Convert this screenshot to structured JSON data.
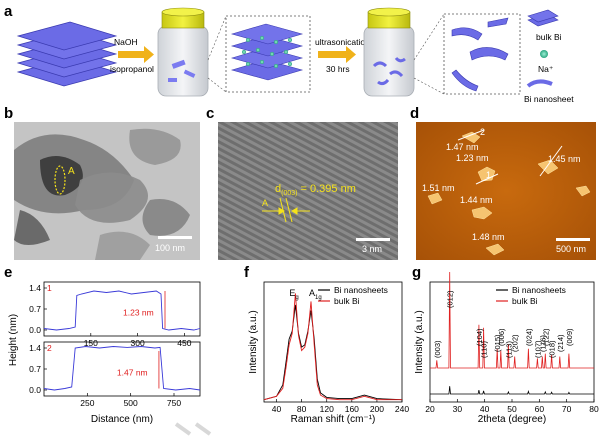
{
  "panels": {
    "a": {
      "label": "a",
      "step1": "NaOH",
      "step2": "isopropanol",
      "step3": "ultrasonication",
      "step4": "30 hrs",
      "legend": [
        "bulk  Bi",
        "Na⁺",
        "Bi nanosheet"
      ],
      "colors": {
        "sheet": "#6b6be6",
        "sheet_edge": "#3a3ab0",
        "arrow": "#f0b21a",
        "cap": "#e6e61a",
        "na": "#3ec7a0"
      }
    },
    "b": {
      "label": "b",
      "marker": "A",
      "scale": "100 nm"
    },
    "c": {
      "label": "c",
      "dspacing": "d",
      "dsub": "(003)",
      "dvalue": " = 0.395 nm",
      "marker": "A",
      "scale": "3 nm"
    },
    "d": {
      "label": "d",
      "scale": "500 nm",
      "heights": [
        "1.47 nm",
        "1.23 nm",
        "1.45 nm",
        "1.51 nm",
        "1.44 nm",
        "1.48 nm"
      ],
      "markers": [
        "1",
        "2"
      ]
    }
  },
  "chart_data": [
    {
      "panel": "e",
      "type": "line",
      "xlabel": "Distance (nm)",
      "ylabel": "Height (nm)",
      "subplots": [
        {
          "id": "1",
          "annotation": "1.23 nm",
          "xlim": [
            0,
            500
          ],
          "ylim": [
            -0.2,
            1.6
          ],
          "xticks": [
            150,
            300,
            450
          ],
          "yticks": [
            0.0,
            0.7,
            1.4
          ],
          "x": [
            0,
            40,
            80,
            100,
            105,
            120,
            160,
            200,
            240,
            280,
            320,
            360,
            375,
            380,
            400,
            440,
            480,
            500
          ],
          "y": [
            0.05,
            0.0,
            0.05,
            0.1,
            1.15,
            1.2,
            1.3,
            1.25,
            1.3,
            1.2,
            1.25,
            1.3,
            1.2,
            0.05,
            0.0,
            0.05,
            0.0,
            0.05
          ]
        },
        {
          "id": "2",
          "annotation": "1.47 nm",
          "xlim": [
            0,
            900
          ],
          "ylim": [
            -0.2,
            1.6
          ],
          "xticks": [
            250,
            500,
            750
          ],
          "yticks": [
            0.0,
            0.7,
            1.4
          ],
          "x": [
            0,
            60,
            120,
            160,
            180,
            240,
            320,
            400,
            480,
            560,
            640,
            670,
            690,
            760,
            840,
            900
          ],
          "y": [
            0.05,
            0.0,
            0.05,
            0.1,
            1.4,
            1.45,
            1.4,
            1.45,
            1.42,
            1.45,
            1.4,
            1.42,
            0.05,
            0.0,
            0.05,
            0.0
          ]
        }
      ]
    },
    {
      "panel": "f",
      "type": "line",
      "xlabel": "Raman shift (cm⁻¹)",
      "ylabel": "Intensity (a.u.)",
      "xlim": [
        20,
        240
      ],
      "xticks": [
        40,
        80,
        120,
        160,
        200,
        240
      ],
      "peaks": [
        {
          "label": "E",
          "sub": "g",
          "x": 70
        },
        {
          "label": "A",
          "sub": "1g",
          "x": 95
        }
      ],
      "series": [
        {
          "name": "Bi nanosheets",
          "color": "#000000",
          "x": [
            20,
            40,
            50,
            55,
            60,
            65,
            70,
            75,
            80,
            85,
            90,
            95,
            100,
            105,
            110,
            120,
            140,
            160,
            180,
            200,
            240
          ],
          "y": [
            0.02,
            0.05,
            0.15,
            0.35,
            0.55,
            0.62,
            0.85,
            0.6,
            0.48,
            0.5,
            0.62,
            0.8,
            0.55,
            0.2,
            0.08,
            0.04,
            0.03,
            0.03,
            0.06,
            0.03,
            0.02
          ]
        },
        {
          "name": "bulk  Bi",
          "color": "#e02020",
          "x": [
            20,
            40,
            50,
            55,
            60,
            65,
            70,
            75,
            80,
            85,
            90,
            95,
            100,
            105,
            110,
            120,
            140,
            160,
            180,
            200,
            240
          ],
          "y": [
            0.02,
            0.05,
            0.12,
            0.3,
            0.5,
            0.6,
            0.95,
            0.58,
            0.45,
            0.48,
            0.6,
            0.88,
            0.5,
            0.15,
            0.06,
            0.03,
            0.02,
            0.02,
            0.05,
            0.02,
            0.02
          ]
        }
      ]
    },
    {
      "panel": "g",
      "type": "line",
      "xlabel": "2theta (degree)",
      "ylabel": "Intensity (a.u.)",
      "xlim": [
        20,
        80
      ],
      "xticks": [
        20,
        30,
        40,
        50,
        60,
        70,
        80
      ],
      "reflections": [
        {
          "label": "(003)",
          "x": 22.5
        },
        {
          "label": "(012)",
          "x": 27.2
        },
        {
          "label": "(104)",
          "x": 37.9
        },
        {
          "label": "(110)",
          "x": 39.6
        },
        {
          "label": "(015)",
          "x": 44.6
        },
        {
          "label": "(006)",
          "x": 45.9
        },
        {
          "label": "(113)",
          "x": 48.7
        },
        {
          "label": "(202)",
          "x": 51.0
        },
        {
          "label": "(024)",
          "x": 56.0
        },
        {
          "label": "(107)",
          "x": 59.3
        },
        {
          "label": "(116)",
          "x": 61.1
        },
        {
          "label": "(122)",
          "x": 62.2
        },
        {
          "label": "(018)",
          "x": 64.5
        },
        {
          "label": "(214)",
          "x": 67.5
        },
        {
          "label": "(009)",
          "x": 70.8
        }
      ],
      "series": [
        {
          "name": "Bi nanosheets",
          "color": "#000000",
          "x": [
            27.2,
            37.9,
            39.6,
            48.7,
            56.0,
            62.2,
            64.5,
            70.8
          ],
          "y": [
            0.3,
            0.15,
            0.12,
            0.08,
            0.1,
            0.08,
            0.07,
            0.06
          ]
        },
        {
          "name": "bulk  Bi",
          "color": "#e02020",
          "x": [
            22.5,
            27.2,
            37.9,
            39.6,
            44.6,
            45.9,
            48.7,
            51.0,
            56.0,
            59.3,
            61.1,
            62.2,
            64.5,
            67.5,
            70.8
          ],
          "y": [
            0.08,
            1.0,
            0.45,
            0.42,
            0.2,
            0.18,
            0.25,
            0.12,
            0.2,
            0.1,
            0.12,
            0.15,
            0.14,
            0.12,
            0.15
          ]
        }
      ]
    }
  ]
}
